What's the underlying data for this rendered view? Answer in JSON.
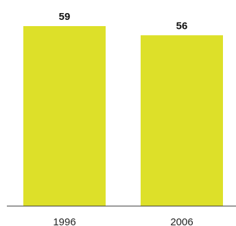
{
  "chart_data": {
    "type": "bar",
    "title": "",
    "xlabel": "",
    "ylabel": "",
    "categories": [
      "1996",
      "2006"
    ],
    "values": [
      59,
      56
    ],
    "ylim": [
      0,
      59
    ],
    "grid": false,
    "bar_color": "#dde029",
    "axis_color": "#333333"
  }
}
